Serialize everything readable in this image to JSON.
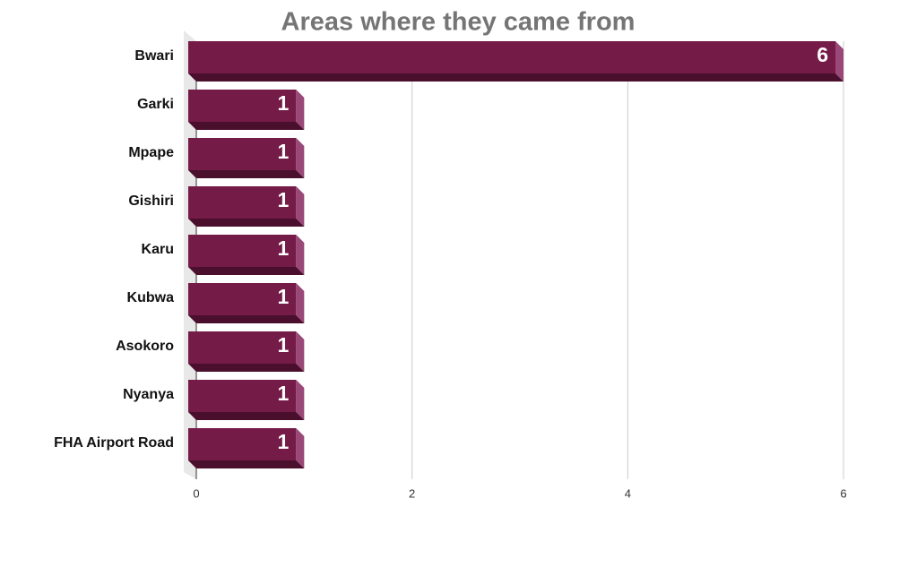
{
  "chart_data": {
    "type": "bar",
    "orientation": "horizontal",
    "title": "Areas where they came from",
    "categories": [
      "Bwari",
      "Garki",
      "Mpape",
      "Gishiri",
      "Karu",
      "Kubwa",
      "Asokoro",
      "Nyanya",
      "FHA Airport Road"
    ],
    "values": [
      6,
      1,
      1,
      1,
      1,
      1,
      1,
      1,
      1
    ],
    "color": "#741b47",
    "xlim": [
      0,
      6
    ],
    "xticks": [
      0,
      2,
      4,
      6
    ],
    "grid": true
  }
}
